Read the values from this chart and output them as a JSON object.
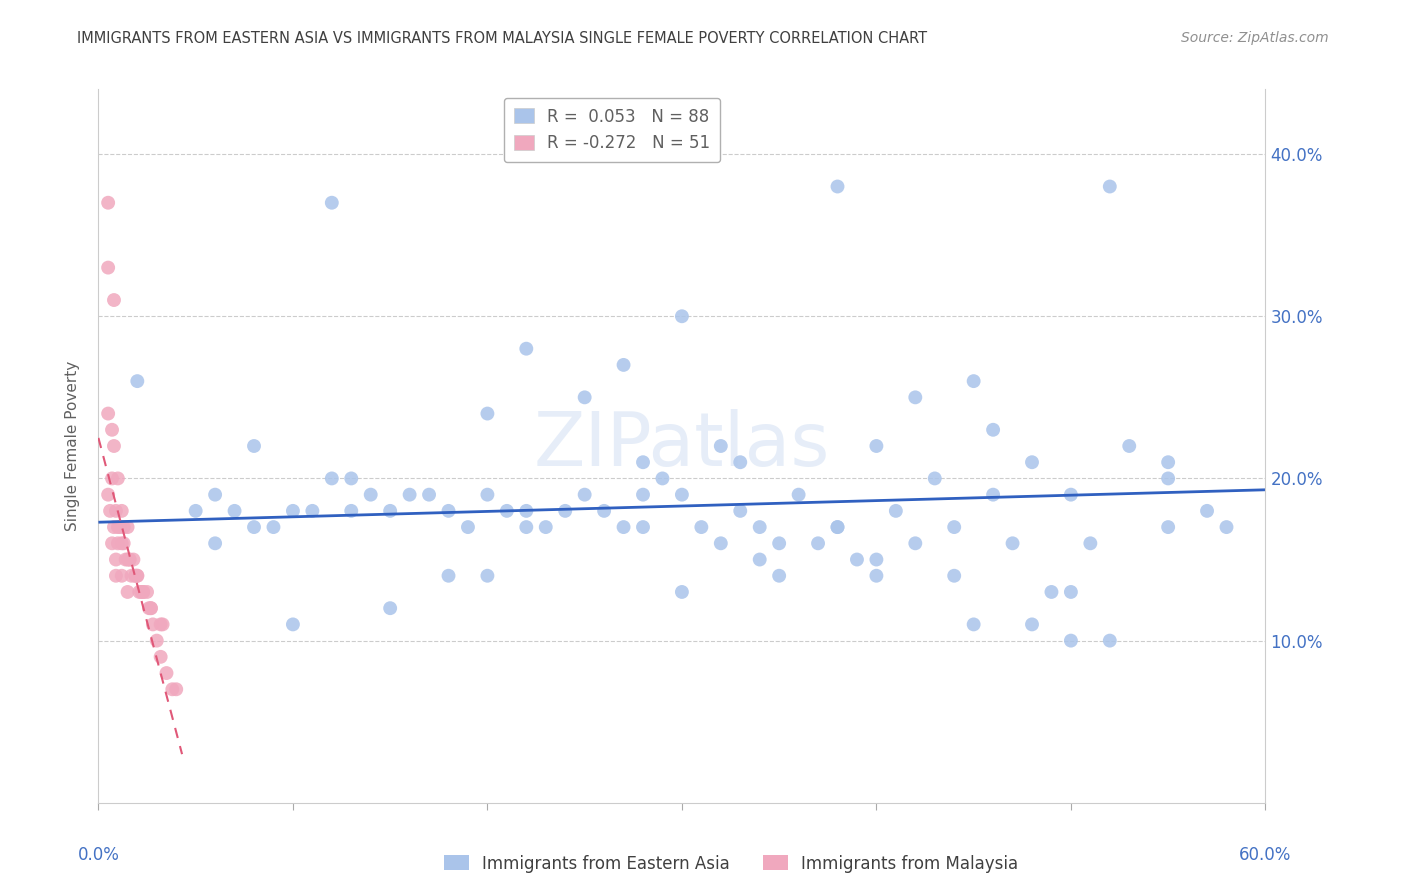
{
  "title": "IMMIGRANTS FROM EASTERN ASIA VS IMMIGRANTS FROM MALAYSIA SINGLE FEMALE POVERTY CORRELATION CHART",
  "source": "Source: ZipAtlas.com",
  "ylabel": "Single Female Poverty",
  "ytick_labels": [
    "10.0%",
    "20.0%",
    "30.0%",
    "40.0%"
  ],
  "ytick_values": [
    0.1,
    0.2,
    0.3,
    0.4
  ],
  "xlim": [
    0.0,
    0.6
  ],
  "ylim": [
    0.0,
    0.44
  ],
  "watermark": "ZIPatlas",
  "blue_color": "#aac4ea",
  "pink_color": "#f0a8be",
  "blue_line_color": "#3060c0",
  "pink_line_color": "#e05878",
  "axis_label_color": "#4472c4",
  "grid_color": "#cccccc",
  "blue_scatter_x": [
    0.02,
    0.05,
    0.06,
    0.07,
    0.08,
    0.09,
    0.1,
    0.11,
    0.12,
    0.13,
    0.14,
    0.15,
    0.16,
    0.17,
    0.18,
    0.19,
    0.2,
    0.21,
    0.22,
    0.23,
    0.24,
    0.25,
    0.26,
    0.27,
    0.28,
    0.29,
    0.3,
    0.31,
    0.32,
    0.33,
    0.34,
    0.35,
    0.36,
    0.37,
    0.38,
    0.39,
    0.4,
    0.41,
    0.42,
    0.43,
    0.44,
    0.45,
    0.46,
    0.47,
    0.48,
    0.49,
    0.5,
    0.51,
    0.52,
    0.53,
    0.55,
    0.57,
    0.08,
    0.12,
    0.27,
    0.32,
    0.38,
    0.45,
    0.52,
    0.28,
    0.42,
    0.3,
    0.46,
    0.55,
    0.2,
    0.25,
    0.33,
    0.4,
    0.5,
    0.15,
    0.22,
    0.35,
    0.1,
    0.18,
    0.28,
    0.38,
    0.48,
    0.06,
    0.13,
    0.2,
    0.3,
    0.4,
    0.5,
    0.58,
    0.55,
    0.22,
    0.34,
    0.44
  ],
  "blue_scatter_y": [
    0.26,
    0.18,
    0.19,
    0.18,
    0.17,
    0.17,
    0.18,
    0.18,
    0.2,
    0.2,
    0.19,
    0.18,
    0.19,
    0.19,
    0.18,
    0.17,
    0.19,
    0.18,
    0.17,
    0.17,
    0.18,
    0.19,
    0.18,
    0.17,
    0.17,
    0.2,
    0.19,
    0.17,
    0.16,
    0.18,
    0.17,
    0.16,
    0.19,
    0.16,
    0.17,
    0.15,
    0.14,
    0.18,
    0.16,
    0.2,
    0.17,
    0.11,
    0.19,
    0.16,
    0.21,
    0.13,
    0.13,
    0.16,
    0.1,
    0.22,
    0.17,
    0.18,
    0.22,
    0.37,
    0.27,
    0.22,
    0.38,
    0.26,
    0.38,
    0.19,
    0.25,
    0.3,
    0.23,
    0.21,
    0.24,
    0.25,
    0.21,
    0.22,
    0.19,
    0.12,
    0.28,
    0.14,
    0.11,
    0.14,
    0.21,
    0.17,
    0.11,
    0.16,
    0.18,
    0.14,
    0.13,
    0.15,
    0.1,
    0.17,
    0.2,
    0.18,
    0.15,
    0.14
  ],
  "pink_scatter_x": [
    0.005,
    0.005,
    0.007,
    0.007,
    0.008,
    0.008,
    0.009,
    0.01,
    0.01,
    0.012,
    0.012,
    0.013,
    0.014,
    0.015,
    0.015,
    0.016,
    0.017,
    0.018,
    0.019,
    0.02,
    0.02,
    0.021,
    0.022,
    0.023,
    0.025,
    0.026,
    0.027,
    0.028,
    0.03,
    0.032,
    0.033,
    0.035,
    0.038,
    0.04,
    0.005,
    0.006,
    0.008,
    0.009,
    0.01,
    0.011,
    0.013,
    0.016,
    0.019,
    0.023,
    0.027,
    0.032,
    0.005,
    0.007,
    0.009,
    0.012,
    0.015
  ],
  "pink_scatter_y": [
    0.37,
    0.33,
    0.23,
    0.2,
    0.31,
    0.22,
    0.18,
    0.2,
    0.17,
    0.18,
    0.16,
    0.17,
    0.15,
    0.17,
    0.15,
    0.15,
    0.14,
    0.15,
    0.14,
    0.14,
    0.14,
    0.13,
    0.13,
    0.13,
    0.13,
    0.12,
    0.12,
    0.11,
    0.1,
    0.09,
    0.11,
    0.08,
    0.07,
    0.07,
    0.24,
    0.18,
    0.17,
    0.15,
    0.16,
    0.17,
    0.16,
    0.15,
    0.14,
    0.13,
    0.12,
    0.11,
    0.19,
    0.16,
    0.14,
    0.14,
    0.13
  ],
  "blue_trend_x": [
    0.0,
    0.6
  ],
  "blue_trend_y": [
    0.173,
    0.193
  ],
  "pink_trend_x": [
    0.0,
    0.043
  ],
  "pink_trend_y": [
    0.225,
    0.03
  ]
}
